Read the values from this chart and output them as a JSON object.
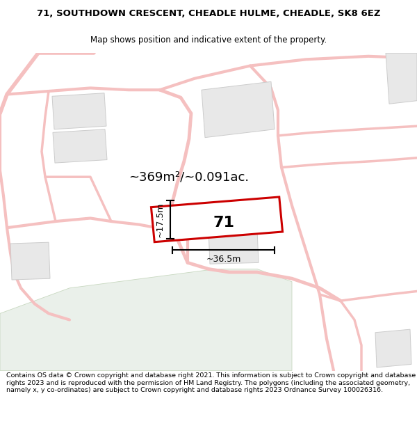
{
  "title": "71, SOUTHDOWN CRESCENT, CHEADLE HULME, CHEADLE, SK8 6EZ",
  "subtitle": "Map shows position and indicative extent of the property.",
  "footer": "Contains OS data © Crown copyright and database right 2021. This information is subject to Crown copyright and database rights 2023 and is reproduced with the permission of HM Land Registry. The polygons (including the associated geometry, namely x, y co-ordinates) are subject to Crown copyright and database rights 2023 Ordnance Survey 100026316.",
  "area_label": "~369m²/~0.091ac.",
  "width_label": "~36.5m",
  "height_label": "~17.5m",
  "number_label": "71",
  "bg_color": "#ffffff",
  "map_bg": "#ffffff",
  "green_color": "#eaf0ea",
  "plot_color": "#cc0000",
  "road_color": "#f5c0c0",
  "building_color": "#e8e8e8",
  "building_edge": "#cccccc",
  "title_fontsize": 9.5,
  "subtitle_fontsize": 8.5,
  "footer_fontsize": 6.8,
  "area_fontsize": 13,
  "dim_fontsize": 9,
  "num_fontsize": 16
}
